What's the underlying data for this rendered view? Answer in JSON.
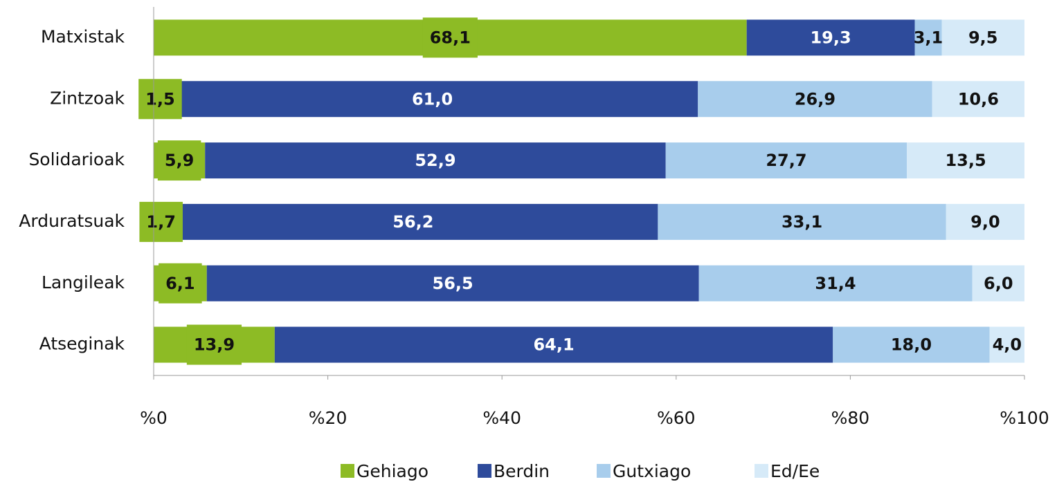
{
  "chart_data": {
    "type": "stacked_bar_horizontal",
    "categories": [
      "Matxistak",
      "Zintzoak",
      "Solidarioak",
      "Arduratsuak",
      "Langileak",
      "Atseginak"
    ],
    "series": [
      {
        "name": "Gehiago",
        "color": "#8dbb25",
        "values": [
          68.1,
          1.5,
          5.9,
          1.7,
          6.1,
          13.9
        ],
        "value_labels": [
          "68,1",
          "1,5",
          "5,9",
          "1,7",
          "6,1",
          "13,9"
        ]
      },
      {
        "name": "Berdin",
        "color": "#2e4b9b",
        "values": [
          19.3,
          61.0,
          52.9,
          56.2,
          56.5,
          64.1
        ],
        "value_labels": [
          "19,3",
          "61,0",
          "52,9",
          "56,2",
          "56,5",
          "64,1"
        ]
      },
      {
        "name": "Gutxiago",
        "color": "#a8cdec",
        "values": [
          3.1,
          26.9,
          27.7,
          33.1,
          31.4,
          18.0
        ],
        "value_labels": [
          "3,1",
          "26,9",
          "27,7",
          "33,1",
          "31,4",
          "18,0"
        ]
      },
      {
        "name": "Ed/Ee",
        "color": "#d6eaf8",
        "values": [
          9.5,
          10.6,
          13.5,
          9.0,
          6.0,
          4.0
        ],
        "value_labels": [
          "9,5",
          "10,6",
          "13,5",
          "9,0",
          "6,0",
          "4,0"
        ]
      }
    ],
    "xlim": [
      0,
      100
    ],
    "xticks": [
      {
        "value": 0,
        "label": "%0"
      },
      {
        "value": 20,
        "label": "%20"
      },
      {
        "value": 40,
        "label": "%40"
      },
      {
        "value": 60,
        "label": "%60"
      },
      {
        "value": 80,
        "label": "%80"
      },
      {
        "value": 100,
        "label": "%100"
      }
    ],
    "legend": "bottom"
  }
}
